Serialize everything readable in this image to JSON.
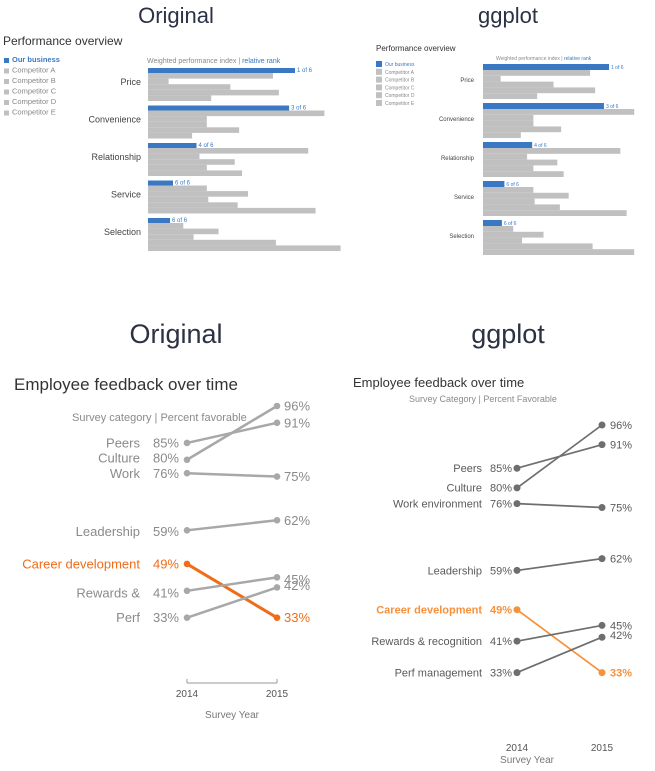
{
  "headings": {
    "top_left": "Original",
    "top_right": "ggplot",
    "bottom_left": "Original",
    "bottom_right": "ggplot"
  },
  "chart_data": [
    {
      "id": "perf_original",
      "type": "bar",
      "title": "Performance overview",
      "subtitle_main": "Weighted performance index",
      "subtitle_sep": "|",
      "subtitle_accent": "relative rank",
      "legend_position": "left",
      "colors": {
        "highlight": "#3a78c3",
        "other": "#c0c0c0",
        "label": "#3a78c3"
      },
      "categories": [
        "Price",
        "Convenience",
        "Relationship",
        "Service",
        "Selection"
      ],
      "series": [
        {
          "name": "Our business",
          "values": [
            1.0,
            0.96,
            0.33,
            0.17,
            0.15
          ]
        },
        {
          "name": "Competitor A",
          "values": [
            0.85,
            1.2,
            1.09,
            0.4,
            0.24
          ]
        },
        {
          "name": "Competitor B",
          "values": [
            0.14,
            0.4,
            0.35,
            0.68,
            0.48
          ]
        },
        {
          "name": "Competitor C",
          "values": [
            0.56,
            0.4,
            0.59,
            0.41,
            0.31
          ]
        },
        {
          "name": "Competitor D",
          "values": [
            0.89,
            0.62,
            0.4,
            0.61,
            0.87
          ]
        },
        {
          "name": "Competitor E",
          "values": [
            0.43,
            0.3,
            0.64,
            1.14,
            1.31
          ]
        }
      ],
      "rank_labels": [
        "1 of 6",
        "3 of 6",
        "4 of 6",
        "6 of 6",
        "6 of 6"
      ]
    },
    {
      "id": "perf_ggplot",
      "type": "bar",
      "title": "Performance overview",
      "subtitle_main": "Weighted performance index",
      "subtitle_sep": "|",
      "subtitle_accent": "relative rank",
      "legend_position": "left",
      "colors": {
        "highlight": "#3a78c3",
        "other": "#c0c0c0",
        "label": "#3a78c3"
      },
      "categories": [
        "Price",
        "Convenience",
        "Relationship",
        "Service",
        "Selection"
      ],
      "series": [
        {
          "name": "Our business",
          "values": [
            1.0,
            0.96,
            0.39,
            0.17,
            0.15
          ]
        },
        {
          "name": "Competitor A",
          "values": [
            0.85,
            1.2,
            1.09,
            0.4,
            0.24
          ]
        },
        {
          "name": "Competitor B",
          "values": [
            0.14,
            0.4,
            0.35,
            0.68,
            0.48
          ]
        },
        {
          "name": "Competitor C",
          "values": [
            0.56,
            0.4,
            0.59,
            0.41,
            0.31
          ]
        },
        {
          "name": "Competitor D",
          "values": [
            0.89,
            0.62,
            0.4,
            0.61,
            0.87
          ]
        },
        {
          "name": "Competitor E",
          "values": [
            0.43,
            0.3,
            0.64,
            1.14,
            1.2
          ]
        }
      ],
      "rank_labels": [
        "1 of 6",
        "3 of 6",
        "4 of 6",
        "6 of 6",
        "6 of 6"
      ]
    },
    {
      "id": "feedback_original",
      "type": "line",
      "title": "Employee feedback over time",
      "subtitle_main": "Survey category",
      "subtitle_sep": "|",
      "subtitle_accent": "Percent favorable",
      "xlabel": "Survey Year",
      "x": [
        "2014",
        "2015"
      ],
      "ylim": [
        25,
        100
      ],
      "colors": {
        "line": "#a8a8a8",
        "highlight": "#ef6c1a",
        "text": "#8a8a8a"
      },
      "series": [
        {
          "name": "Peers",
          "values": [
            85,
            91
          ]
        },
        {
          "name": "Culture",
          "values": [
            80,
            96
          ]
        },
        {
          "name": "Work",
          "values": [
            76,
            75
          ]
        },
        {
          "name": "Leadership",
          "values": [
            59,
            62
          ]
        },
        {
          "name": "Career development",
          "values": [
            49,
            33
          ],
          "highlight": true
        },
        {
          "name": "Rewards &",
          "values": [
            41,
            45
          ]
        },
        {
          "name": "Perf",
          "values": [
            33,
            42
          ]
        }
      ]
    },
    {
      "id": "feedback_ggplot",
      "type": "line",
      "title": "Employee feedback over time",
      "subtitle_main": "Survey Category",
      "subtitle_sep": "|",
      "subtitle_accent": "Percent Favorable",
      "xlabel": "Survey Year",
      "x": [
        "2014",
        "2015"
      ],
      "ylim": [
        25,
        100
      ],
      "colors": {
        "line": "#6e6e6e",
        "highlight": "#f6913c",
        "text": "#5a5a5a"
      },
      "series": [
        {
          "name": "Peers",
          "values": [
            85,
            91
          ]
        },
        {
          "name": "Culture",
          "values": [
            80,
            96
          ]
        },
        {
          "name": "Work environment",
          "values": [
            76,
            75
          ]
        },
        {
          "name": "Leadership",
          "values": [
            59,
            62
          ]
        },
        {
          "name": "Career development",
          "values": [
            49,
            33
          ],
          "highlight": true
        },
        {
          "name": "Rewards & recognition",
          "values": [
            41,
            45
          ]
        },
        {
          "name": "Perf management",
          "values": [
            33,
            42
          ]
        }
      ]
    }
  ]
}
